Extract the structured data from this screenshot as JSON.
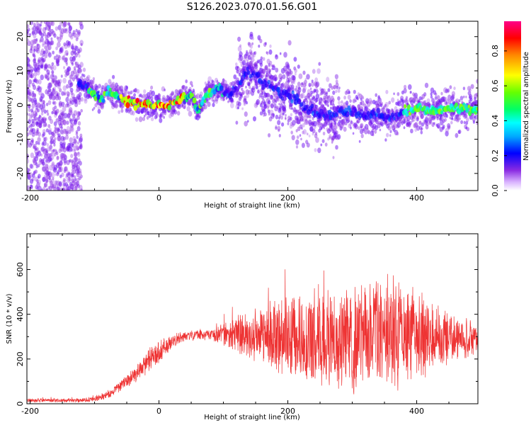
{
  "figure": {
    "title": "S126.2023.070.01.56.G01"
  },
  "colorbar": {
    "label": "Normalized spectral amplitude",
    "ticks": [
      "0.0",
      "0.2",
      "0.4",
      "0.6",
      "0.8"
    ],
    "tick_values": [
      0.0,
      0.2,
      0.4,
      0.6,
      0.8
    ],
    "range": [
      0,
      0.97
    ],
    "colors": [
      "#e6ccff",
      "#8a2be2",
      "#5a00ff",
      "#0000ff",
      "#00ffff",
      "#00ff66",
      "#99ff00",
      "#ffff00",
      "#ff8800",
      "#ff0000",
      "#ff0077"
    ]
  },
  "chart_data": [
    {
      "type": "heatmap",
      "title": "",
      "xlabel": "Height of straight line (km)",
      "ylabel": "Frequency (Hz)",
      "xlim": [
        -205,
        495
      ],
      "ylim": [
        -25,
        24.5
      ],
      "xticks": [
        -200,
        0,
        200,
        400
      ],
      "xtick_labels": [
        "-200",
        "0",
        "200",
        "400"
      ],
      "yticks": [
        -20,
        -10,
        0,
        10,
        20
      ],
      "ytick_labels": [
        "-20",
        "-10",
        "0",
        "10",
        "20"
      ],
      "ridge": {
        "name": "",
        "x": [
          -125,
          -110,
          -100,
          -90,
          -80,
          -70,
          -60,
          -50,
          -40,
          -20,
          0,
          20,
          40,
          50,
          60,
          70,
          80,
          90,
          100,
          110,
          120,
          130,
          140,
          150,
          160,
          170,
          180,
          190,
          200,
          210,
          220,
          230,
          240,
          250,
          260,
          280,
          300,
          320,
          340,
          360,
          380,
          400,
          420,
          440,
          460,
          480,
          495
        ],
        "y": [
          6,
          5,
          3,
          1,
          4,
          3,
          2,
          1,
          0.5,
          0,
          0,
          0.5,
          2,
          3,
          -2,
          2,
          4,
          5,
          4,
          3,
          5,
          8,
          10,
          9,
          6,
          6,
          5,
          3,
          4,
          2,
          0,
          -1,
          -2,
          -3,
          -3,
          -2,
          -2,
          -3,
          -3,
          -4,
          -2,
          -1,
          -2,
          -1,
          -1,
          -1,
          -1.5
        ]
      },
      "grid": false
    },
    {
      "type": "line",
      "title": "",
      "xlabel": "Height of straight line (km)",
      "ylabel": "SNR (10 * v/v)",
      "xlim": [
        -205,
        495
      ],
      "ylim": [
        0,
        760
      ],
      "xticks": [
        -200,
        0,
        200,
        400
      ],
      "xtick_labels": [
        "-200",
        "0",
        "200",
        "400"
      ],
      "yticks": [
        0,
        200,
        400,
        600
      ],
      "ytick_labels": [
        "0",
        "200",
        "400",
        "600"
      ],
      "series": [
        {
          "name": "",
          "color": "#ee3333",
          "x": [
            -205,
            -150,
            -120,
            -100,
            -80,
            -60,
            -40,
            -20,
            0,
            20,
            40,
            60,
            80,
            100,
            120,
            140,
            160,
            180,
            200,
            220,
            240,
            260,
            280,
            300,
            320,
            340,
            360,
            380,
            400,
            420,
            440,
            460,
            480,
            495
          ],
          "mean": [
            15,
            15,
            15,
            20,
            40,
            80,
            120,
            180,
            230,
            280,
            300,
            310,
            310,
            310,
            310,
            310,
            310,
            300,
            310,
            300,
            290,
            290,
            290,
            300,
            300,
            310,
            320,
            310,
            300,
            300,
            300,
            300,
            290,
            290
          ],
          "amplitude": [
            10,
            10,
            10,
            15,
            20,
            30,
            40,
            60,
            60,
            30,
            25,
            25,
            30,
            60,
            100,
            120,
            140,
            180,
            200,
            240,
            240,
            230,
            250,
            270,
            270,
            280,
            280,
            270,
            230,
            200,
            150,
            110,
            90,
            80
          ]
        }
      ],
      "grid": false
    }
  ]
}
